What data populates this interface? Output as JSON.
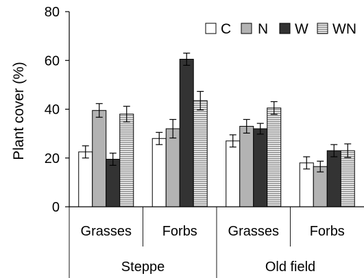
{
  "chart_data": {
    "type": "bar",
    "ylabel": "Plant cover (%)",
    "ylim": [
      0,
      80
    ],
    "yticks": [
      0,
      20,
      40,
      60,
      80
    ],
    "grid": false,
    "legend_position": "top-right",
    "groups": [
      {
        "label": "Steppe",
        "categories": [
          "Grasses",
          "Forbs"
        ]
      },
      {
        "label": "Old field",
        "categories": [
          "Grasses",
          "Forbs"
        ]
      }
    ],
    "categories": [
      "Grasses",
      "Forbs",
      "Grasses",
      "Forbs"
    ],
    "series": [
      {
        "name": "C",
        "color": "#ffffff",
        "pattern": "none",
        "values": [
          22.5,
          28.0,
          27.0,
          18.0
        ],
        "errors": [
          2.5,
          2.5,
          2.5,
          2.5
        ]
      },
      {
        "name": "N",
        "color": "#b3b3b3",
        "pattern": "none",
        "values": [
          39.5,
          32.0,
          33.0,
          16.5
        ],
        "errors": [
          2.8,
          3.8,
          2.8,
          2.2
        ]
      },
      {
        "name": "W",
        "color": "#333333",
        "pattern": "none",
        "values": [
          19.5,
          60.5,
          32.0,
          23.0
        ],
        "errors": [
          2.5,
          2.5,
          2.2,
          2.5
        ]
      },
      {
        "name": "WN",
        "color": "#c8c8c8",
        "pattern": "horizontal",
        "values": [
          38.0,
          43.5,
          40.5,
          23.0
        ],
        "errors": [
          3.2,
          3.8,
          2.6,
          2.8
        ]
      }
    ]
  }
}
